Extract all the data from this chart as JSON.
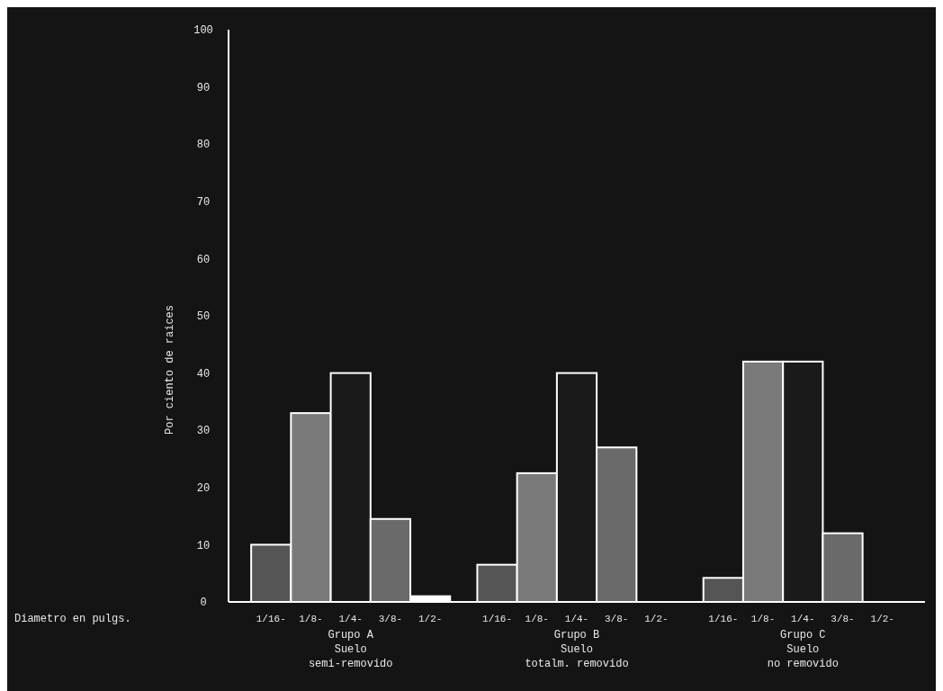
{
  "chart_data": {
    "type": "bar",
    "ylabel": "Por ciento de raices",
    "annotations": [
      "Diametro en pulgs."
    ],
    "categories": [
      "Grupo A\nSuelo\nsemi-removido",
      "Grupo B\nSuelo\ntotalm. removido",
      "Grupo C\nSuelo\nno removido"
    ],
    "series": [
      {
        "name": "1/16-",
        "color": "#555555",
        "values": [
          10,
          6.5,
          4.2
        ]
      },
      {
        "name": "1/8-",
        "color": "#7a7a7a",
        "values": [
          33,
          22.5,
          42
        ]
      },
      {
        "name": "1/4-",
        "color": "#1a1a1a",
        "values": [
          40,
          40,
          42
        ]
      },
      {
        "name": "3/8-",
        "color": "#6a6a6a",
        "values": [
          14.5,
          27,
          12
        ]
      },
      {
        "name": "1/2-",
        "color": "#ffffff",
        "values": [
          1,
          0,
          0
        ]
      }
    ],
    "ylim": [
      0,
      100
    ],
    "yticks": [
      0,
      10,
      20,
      30,
      40,
      50,
      60,
      70,
      80,
      90,
      100
    ],
    "grid": false,
    "legend": false
  }
}
